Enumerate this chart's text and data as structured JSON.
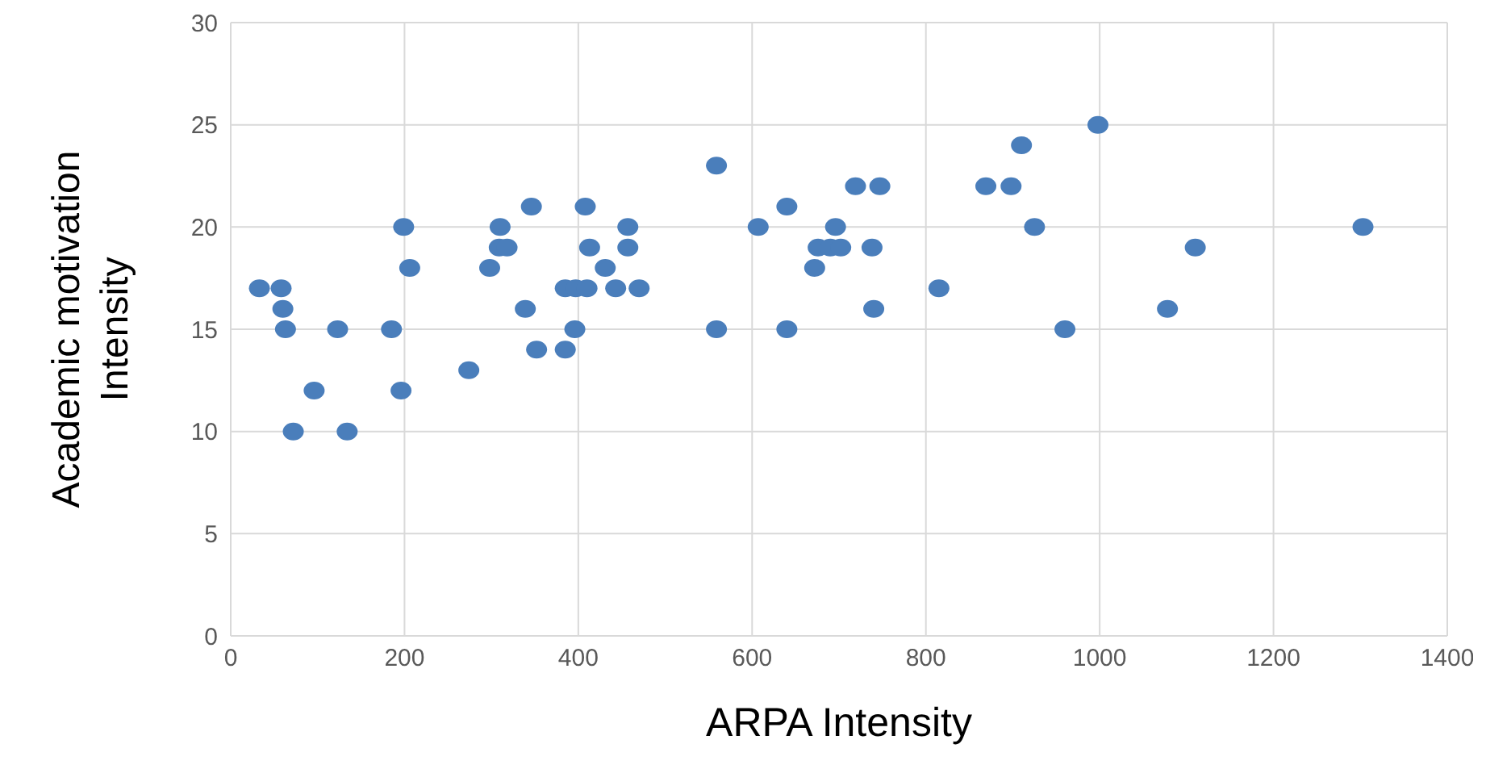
{
  "chart_data": {
    "type": "scatter",
    "xlabel": "ARPA Intensity",
    "ylabel": "Academic motivation Intensity",
    "x": [
      33,
      58,
      60,
      63,
      123,
      185,
      96,
      196,
      72,
      134,
      199,
      206,
      274,
      298,
      309,
      318,
      310,
      346,
      339,
      352,
      385,
      396,
      385,
      397,
      410,
      408,
      413,
      431,
      443,
      457,
      457,
      470,
      559,
      559,
      607,
      640,
      640,
      672,
      676,
      690,
      702,
      696,
      738,
      740,
      719,
      747,
      815,
      869,
      898,
      910,
      925,
      998,
      960,
      1078,
      1110,
      1303
    ],
    "series": [
      {
        "color": "#4a7ebb",
        "values": [
          17,
          17,
          16,
          15,
          15,
          15,
          12,
          12,
          10,
          10,
          20,
          18,
          13,
          18,
          19,
          19,
          20,
          21,
          16,
          14,
          14,
          15,
          17,
          17,
          17,
          21,
          19,
          18,
          17,
          20,
          19,
          17,
          23,
          15,
          20,
          21,
          15,
          18,
          19,
          19,
          19,
          20,
          19,
          16,
          22,
          22,
          17,
          22,
          22,
          24,
          20,
          25,
          15,
          16,
          19,
          20
        ]
      }
    ],
    "xlim": [
      0,
      1400
    ],
    "xticks": [
      0,
      200,
      400,
      600,
      800,
      1000,
      1200,
      1400
    ],
    "ylim": [
      0,
      30
    ],
    "yticks": [
      0,
      5,
      10,
      15,
      20,
      25,
      30
    ],
    "grid": true,
    "marker": "circle"
  }
}
